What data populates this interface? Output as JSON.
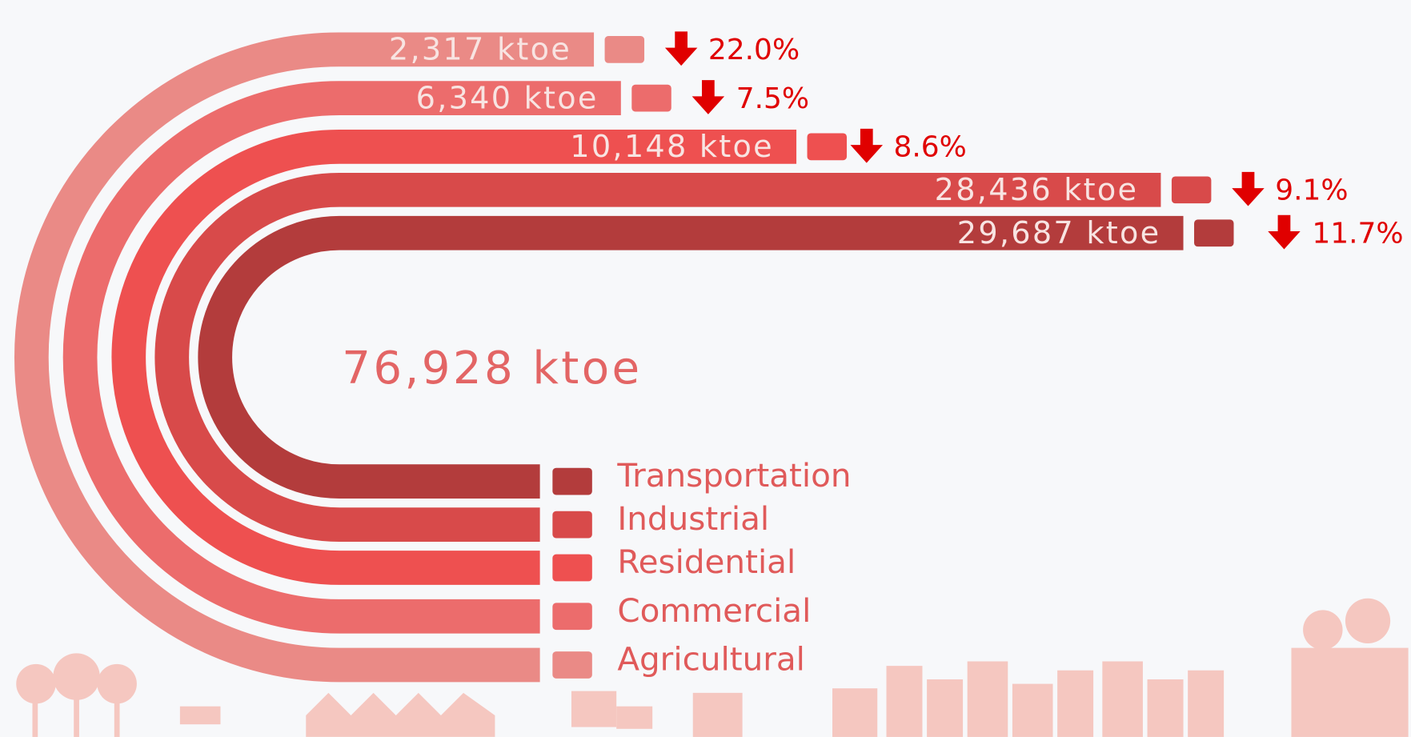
{
  "total": "76,928 ktoe",
  "sectors": [
    {
      "name": "Agricultural",
      "consumption": "2,317 ktoe",
      "change": "22.0%"
    },
    {
      "name": "Commercial",
      "consumption": "6,340 ktoe",
      "change": "7.5%"
    },
    {
      "name": "Residential",
      "consumption": "10,148 ktoe",
      "change": "8.6%"
    },
    {
      "name": "Industrial",
      "consumption": "28,436 ktoe",
      "change": "9.1%"
    },
    {
      "name": "Transportation",
      "consumption": "29,687 ktoe",
      "change": "11.7%"
    }
  ]
}
